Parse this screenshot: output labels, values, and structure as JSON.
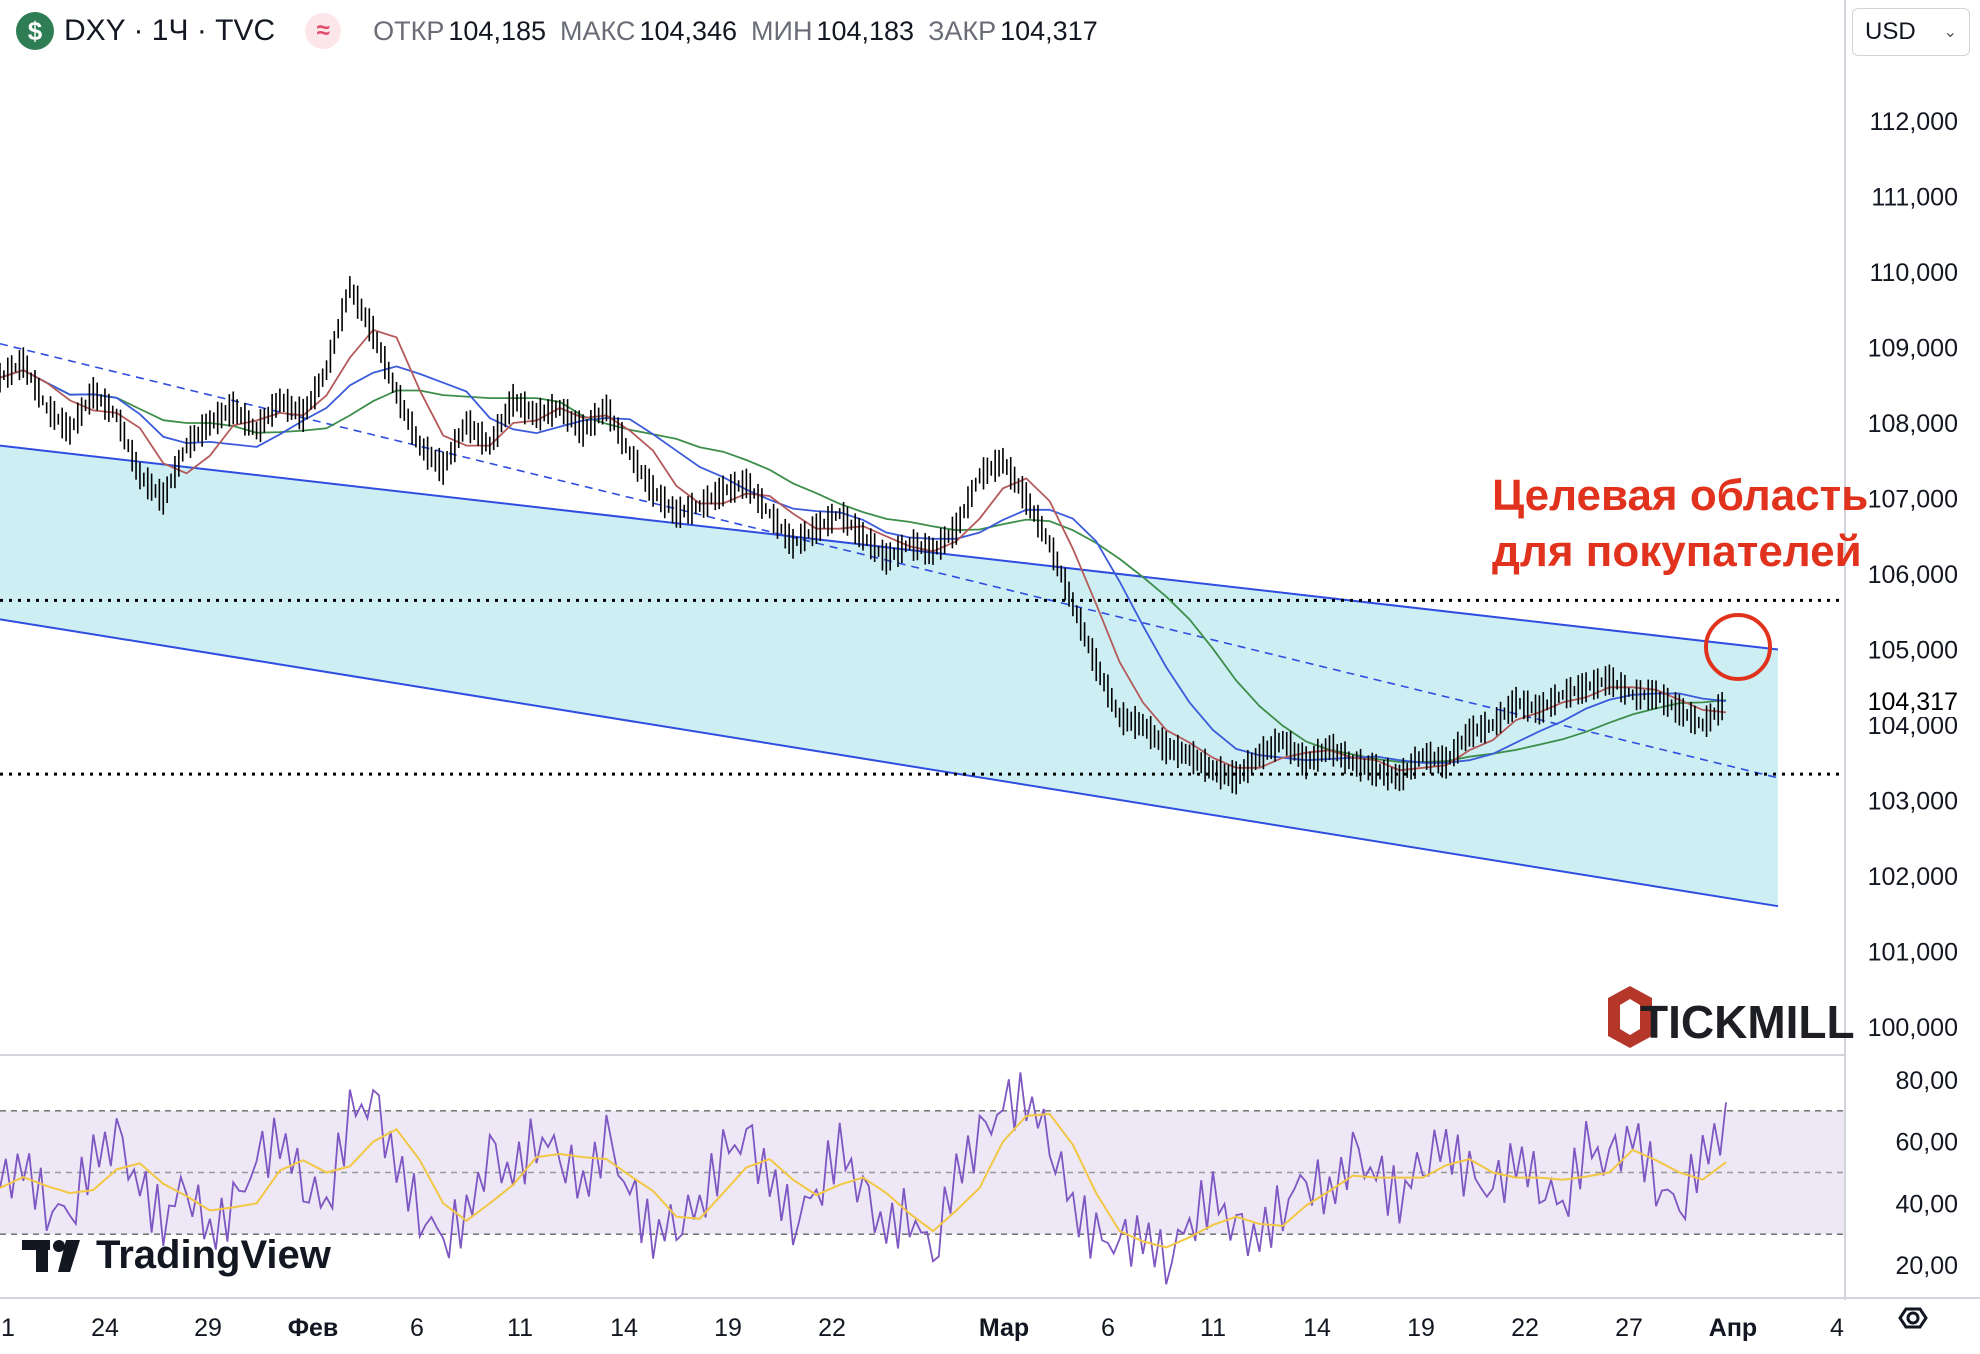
{
  "header": {
    "symbol_icon": "$",
    "symbol_title": "DXY · 1Ч · TVC",
    "indicator_icon": "≈",
    "ohlc": [
      {
        "label": "ОТКР",
        "value": "104,185"
      },
      {
        "label": "МАКС",
        "value": "104,346"
      },
      {
        "label": "МИН",
        "value": "104,183"
      },
      {
        "label": "ЗАКР",
        "value": "104,317"
      }
    ]
  },
  "currency": {
    "value": "USD"
  },
  "annotation": {
    "line1": "Целевая область",
    "line2": "для покупателей"
  },
  "brand": {
    "tickmill": "TICKMILL",
    "tradingview": "TradingView"
  },
  "colors": {
    "channel_fill": "#cdeff4",
    "channel_border": "#2f4de0",
    "candles": "#000000",
    "ma_red": "#b55a5a",
    "ma_blue": "#3b5bdb",
    "ma_green": "#3e8e4b",
    "annotation": "#e0321c",
    "rsi_line": "#7e57c2",
    "rsi_signal": "#f2c744",
    "rsi_band": "#ede7f6"
  },
  "chart_data": [
    {
      "type": "line",
      "title": "DXY · 1Ч · TVC",
      "ylim": [
        100000,
        112000
      ],
      "y_ticks": [
        "112,000",
        "111,000",
        "110,000",
        "109,000",
        "108,000",
        "107,000",
        "106,000",
        "105,000",
        "104,000",
        "103,000",
        "102,000",
        "101,000",
        "100,000"
      ],
      "y_tick_values": [
        112000,
        111000,
        110000,
        109000,
        108000,
        107000,
        106000,
        105000,
        104000,
        103000,
        102000,
        101000,
        100000
      ],
      "x_ticks": [
        "1",
        "24",
        "29",
        "Фев",
        "6",
        "11",
        "14",
        "19",
        "22",
        "Мар",
        "6",
        "11",
        "14",
        "19",
        "22",
        "27",
        "Апр",
        "4"
      ],
      "last_price": "104,317",
      "last_price_value": 104317,
      "horizontal_levels": [
        105650,
        103350
      ],
      "series": [
        {
          "values": [
            108600,
            108800,
            108200,
            107900,
            108400,
            108100,
            107300,
            107000,
            107700,
            108000,
            108200,
            107900,
            108300,
            108100,
            108700,
            109800,
            109200,
            108400,
            107700,
            107400,
            108000,
            107700,
            108300,
            108100,
            108200,
            107900,
            108200,
            107600,
            107100,
            106800,
            106900,
            107100,
            107200,
            106800,
            106400,
            106600,
            106800,
            106500,
            106200,
            106400,
            106300,
            106600,
            107300,
            107500,
            107000,
            106400,
            105600,
            104800,
            104100,
            104000,
            103700,
            103600,
            103400,
            103300,
            103600,
            103800,
            103500,
            103700,
            103500,
            103400,
            103300,
            103600,
            103500,
            103900,
            104000,
            104300,
            104200,
            104400,
            104500,
            104600,
            104400,
            104400,
            104200,
            104000,
            104300
          ]
        }
      ],
      "channel": {
        "upper": [
          107700,
          105000
        ],
        "lower": [
          105400,
          101600
        ],
        "mid": [
          109050,
          103300
        ]
      }
    },
    {
      "type": "line",
      "ylim": [
        10,
        85
      ],
      "y_ticks": [
        "80,00",
        "60,00",
        "40,00",
        "20,00"
      ],
      "y_tick_values": [
        80,
        60,
        40,
        20
      ],
      "band": [
        30,
        70
      ],
      "midline": 50,
      "series": [
        {
          "values": [
            45,
            52,
            40,
            38,
            55,
            60,
            44,
            35,
            48,
            30,
            38,
            52,
            62,
            48,
            40,
            68,
            72,
            52,
            38,
            30,
            35,
            55,
            48,
            62,
            58,
            45,
            60,
            42,
            30,
            35,
            40,
            55,
            60,
            48,
            35,
            45,
            58,
            42,
            30,
            38,
            25,
            50,
            60,
            70,
            75,
            62,
            40,
            28,
            25,
            30,
            22,
            35,
            42,
            30,
            28,
            40,
            50,
            42,
            55,
            48,
            42,
            55,
            60,
            48,
            42,
            55,
            48,
            40,
            58,
            52,
            62,
            48,
            40,
            55,
            65
          ]
        }
      ]
    }
  ]
}
